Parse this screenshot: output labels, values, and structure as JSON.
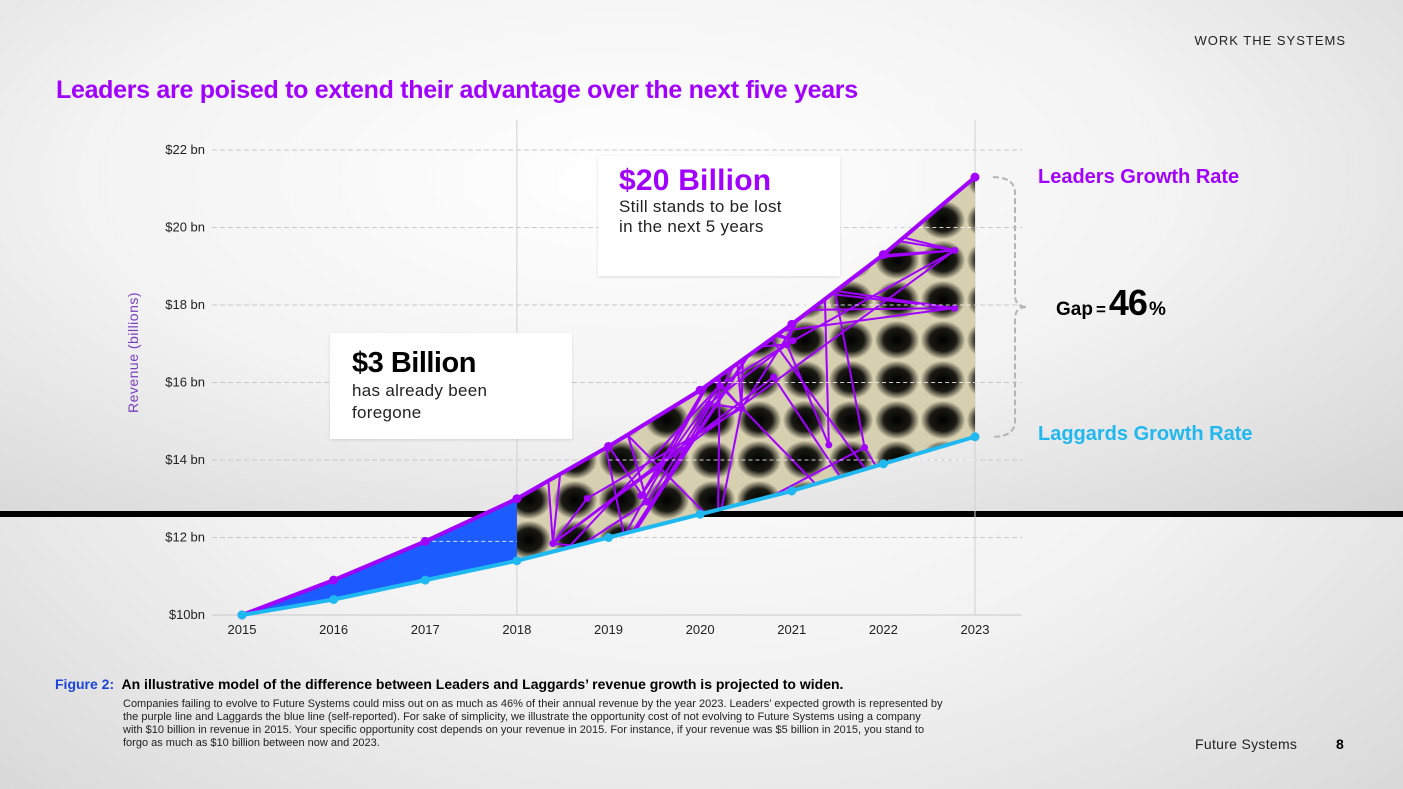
{
  "header": {
    "section": "WORK THE SYSTEMS"
  },
  "title": "Leaders are poised to extend their advantage over the next five years",
  "callouts": {
    "lost": {
      "amount": "$3 Billion",
      "text_line1": "has already been",
      "text_line2": "foregone"
    },
    "remaining": {
      "amount": "$20 Billion",
      "text_line1": "Still stands to be lost",
      "text_line2": "in the next 5 years"
    }
  },
  "legend": {
    "leaders": "Leaders Growth Rate",
    "laggards": "Laggards Growth Rate"
  },
  "gap": {
    "label": "Gap",
    "eq": "=",
    "value": "46",
    "unit": "%"
  },
  "colors": {
    "leaders": "#a100ff",
    "laggards": "#1fb8f0",
    "foregone_fill": "#1c5cff",
    "future_fill": "#000000"
  },
  "chart_data": {
    "type": "line",
    "x": [
      2015,
      2016,
      2017,
      2018,
      2019,
      2020,
      2021,
      2022,
      2023
    ],
    "x_tick_labels": [
      "2015",
      "2016",
      "2017",
      "2018",
      "2019",
      "2020",
      "2021",
      "2022",
      "2023"
    ],
    "y_tick_values": [
      10,
      12,
      14,
      16,
      18,
      20,
      22
    ],
    "y_tick_labels": [
      "$10bn",
      "$12 bn",
      "$14 bn",
      "$16 bn",
      "$18 bn",
      "$20 bn",
      "$22 bn"
    ],
    "ylabel": "Revenue (billions)",
    "ylim": [
      10,
      22
    ],
    "xlim": [
      2015,
      2023
    ],
    "grid": true,
    "series": [
      {
        "name": "Leaders Growth Rate",
        "values": [
          10,
          10.9,
          11.9,
          13.0,
          14.35,
          15.8,
          17.5,
          19.3,
          21.3
        ]
      },
      {
        "name": "Laggards Growth Rate",
        "values": [
          10,
          10.4,
          10.9,
          11.4,
          12.0,
          12.6,
          13.2,
          13.9,
          14.6
        ]
      }
    ],
    "shaded_regions": [
      {
        "from": 2015,
        "to": 2018
      },
      {
        "from": 2018,
        "to": 2023
      }
    ]
  },
  "figure": {
    "label": "Figure 2:",
    "caption": "An illustrative model of the difference between Leaders and Laggards’ revenue growth is projected to widen.",
    "text": "Companies failing to evolve to Future Systems could miss out on as much as 46% of their annual revenue by the year 2023. Leaders’ expected growth is represented by the purple line and Laggards the blue line (self-reported). For sake of simplicity, we illustrate the opportunity cost of not evolving to Future Systems using a company with $10 billion in revenue in 2015. Your specific opportunity cost depends on your revenue in 2015. For instance, if your revenue was $5 billion in 2015, you stand to forgo as much as $10 billion between now and 2023."
  },
  "footer": {
    "name": "Future Systems",
    "page": "8"
  }
}
